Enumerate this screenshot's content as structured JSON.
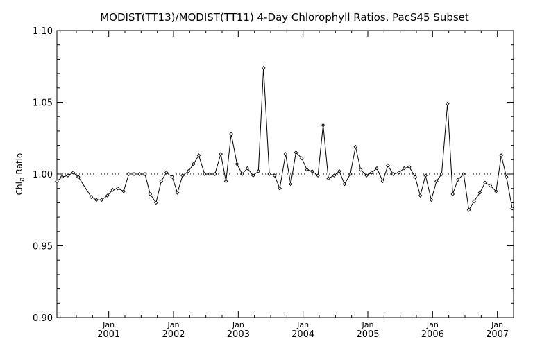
{
  "chart_data": {
    "type": "line",
    "title": "MODIST(TT13)/MODIST(TT11) 4-Day Chlorophyll Ratios, PacS45 Subset",
    "ylabel_main": "Chl",
    "ylabel_sub": "a",
    "ylabel_rest": " Ratio",
    "xlabel": "",
    "ylim": [
      0.9,
      1.1
    ],
    "yticks": [
      "0.90",
      "0.95",
      "1.00",
      "1.05",
      "1.10"
    ],
    "reference_line": 1.0,
    "xlim": [
      2000.2,
      2007.25
    ],
    "xticks": [
      {
        "month": "Jan",
        "year": "2001",
        "x": 2001.0
      },
      {
        "month": "Jan",
        "year": "2002",
        "x": 2002.0
      },
      {
        "month": "Jan",
        "year": "2003",
        "x": 2003.0
      },
      {
        "month": "Jan",
        "year": "2004",
        "x": 2004.0
      },
      {
        "month": "Jan",
        "year": "2005",
        "x": 2005.0
      },
      {
        "month": "Jan",
        "year": "2006",
        "x": 2006.0
      },
      {
        "month": "Jan",
        "year": "2007",
        "x": 2007.0
      }
    ],
    "grid": false,
    "series": [
      {
        "line_color": "#000000",
        "x": [
          2000.2,
          2000.28,
          2000.37,
          2000.45,
          2000.53,
          2000.73,
          2000.81,
          2000.89,
          2000.98,
          2001.06,
          2001.14,
          2001.23,
          2001.31,
          2001.39,
          2001.48,
          2001.56,
          2001.64,
          2001.73,
          2001.81,
          2001.89,
          2001.98,
          2002.06,
          2002.14,
          2002.23,
          2002.31,
          2002.39,
          2002.48,
          2002.56,
          2002.64,
          2002.73,
          2002.81,
          2002.89,
          2002.98,
          2003.06,
          2003.14,
          2003.23,
          2003.31,
          2003.39,
          2003.48,
          2003.56,
          2003.64,
          2003.73,
          2003.81,
          2003.89,
          2003.98,
          2004.06,
          2004.14,
          2004.23,
          2004.31,
          2004.39,
          2004.48,
          2004.56,
          2004.64,
          2004.73,
          2004.81,
          2004.89,
          2004.98,
          2005.06,
          2005.14,
          2005.23,
          2005.31,
          2005.39,
          2005.48,
          2005.56,
          2005.64,
          2005.73,
          2005.81,
          2005.89,
          2005.98,
          2006.06,
          2006.14,
          2006.23,
          2006.31,
          2006.39,
          2006.48,
          2006.56,
          2006.64,
          2006.73,
          2006.81,
          2006.89,
          2006.98,
          2007.06,
          2007.14,
          2007.23
        ],
        "y": [
          0.995,
          0.998,
          0.999,
          1.001,
          0.998,
          0.984,
          0.982,
          0.982,
          0.985,
          0.989,
          0.99,
          0.988,
          1.0,
          1.0,
          1.0,
          1.0,
          0.986,
          0.98,
          0.995,
          1.001,
          0.998,
          0.987,
          0.999,
          1.002,
          1.007,
          1.013,
          1.0,
          1.0,
          1.0,
          1.014,
          0.995,
          1.028,
          1.007,
          1.0,
          1.004,
          0.999,
          1.002,
          1.074,
          1.0,
          0.999,
          0.99,
          1.014,
          0.993,
          1.015,
          1.011,
          1.003,
          1.002,
          0.999,
          1.034,
          0.997,
          0.999,
          1.002,
          0.993,
          1.0,
          1.019,
          1.003,
          0.999,
          1.001,
          1.004,
          0.995,
          1.006,
          1.0,
          1.001,
          1.004,
          1.005,
          0.998,
          0.985,
          0.999,
          0.982,
          0.995,
          1.0,
          1.049,
          0.986,
          0.996,
          1.0,
          0.975,
          0.981,
          0.987,
          0.994,
          0.992,
          0.988,
          1.013,
          0.998,
          0.976
        ]
      }
    ]
  }
}
